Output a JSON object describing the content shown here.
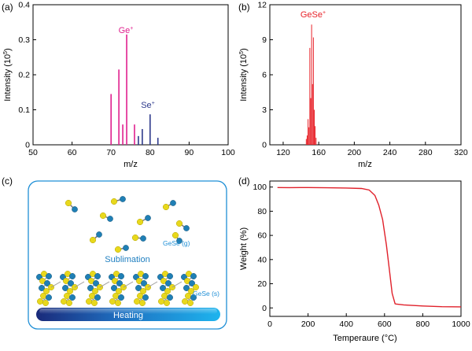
{
  "panels": {
    "a": "(a)",
    "b": "(b)",
    "c": "(c)",
    "d": "(d)"
  },
  "colors": {
    "ge": "#e0208e",
    "se": "#2e3a8c",
    "gese": "#e8232a",
    "tga": "#e0202a",
    "ge_atom": "#1f7fb5",
    "se_atom": "#e8d81c",
    "accent": "#1f8fd6"
  },
  "chart_data": [
    {
      "id": "a",
      "type": "bar",
      "xlabel": "m/z",
      "ylabel_main": "Intensity (10",
      "ylabel_exp": "5",
      "ylabel_end": ")",
      "xlim": [
        50,
        100
      ],
      "ylim": [
        0,
        0.4
      ],
      "xticks": [
        "50",
        "60",
        "70",
        "80",
        "90",
        "100"
      ],
      "yticks": [
        "0",
        "0.1",
        "0.2",
        "0.3",
        "0.4"
      ],
      "series": [
        {
          "name_main": "Ge",
          "name_sup": "+",
          "color": "#e0208e",
          "x": [
            70,
            72,
            73,
            74,
            76
          ],
          "values": [
            0.145,
            0.215,
            0.058,
            0.315,
            0.058
          ]
        },
        {
          "name_main": "Se",
          "name_sup": "+",
          "color": "#2e3a8c",
          "x": [
            77,
            78,
            80,
            82
          ],
          "values": [
            0.025,
            0.045,
            0.087,
            0.02
          ]
        }
      ]
    },
    {
      "id": "b",
      "type": "bar",
      "xlabel": "m/z",
      "ylabel_main": "Intensity (10",
      "ylabel_exp": "5",
      "ylabel_end": ")",
      "xlim": [
        105,
        320
      ],
      "ylim": [
        0,
        12
      ],
      "xticks": [
        "120",
        "160",
        "200",
        "240",
        "280",
        "320"
      ],
      "yticks": [
        "0",
        "3",
        "6",
        "9",
        "12"
      ],
      "series": [
        {
          "name_main": "GeSe",
          "name_sup": "+",
          "color": "#e8232a",
          "x": [
            146,
            147,
            148,
            149,
            150,
            151,
            152,
            153,
            154,
            155,
            156,
            157
          ],
          "values": [
            0.5,
            0.8,
            2.2,
            1.5,
            8.3,
            4.0,
            10.3,
            5.2,
            9.2,
            3.0,
            1.6,
            0.6
          ]
        }
      ]
    },
    {
      "id": "d",
      "type": "line",
      "xlabel_main": "Temperaure (",
      "xlabel_unit": "°C",
      "xlabel_end": ")",
      "ylabel": "Weight (%)",
      "xlim": [
        0,
        1000
      ],
      "ylim": [
        -7,
        105
      ],
      "xticks": [
        "0",
        "200",
        "400",
        "600",
        "800",
        "1000"
      ],
      "yticks": [
        "0",
        "20",
        "40",
        "60",
        "80",
        "100"
      ],
      "series": [
        {
          "color": "#e0202a",
          "x": [
            40,
            100,
            200,
            300,
            400,
            480,
            520,
            550,
            570,
            590,
            610,
            625,
            640,
            655,
            660,
            700,
            800,
            900,
            1000
          ],
          "values": [
            99.6,
            99.5,
            99.6,
            99.4,
            99.2,
            98.8,
            97.5,
            93.0,
            85.0,
            73.0,
            52.0,
            32.0,
            12.0,
            3.5,
            3.2,
            2.5,
            1.6,
            1.0,
            0.9
          ]
        }
      ]
    }
  ],
  "schematic": {
    "gas_label": "GeSe (g)",
    "solid_label": "GeSe (s)",
    "sublimation_label": "Sublimation",
    "heating_label": "Heating"
  }
}
